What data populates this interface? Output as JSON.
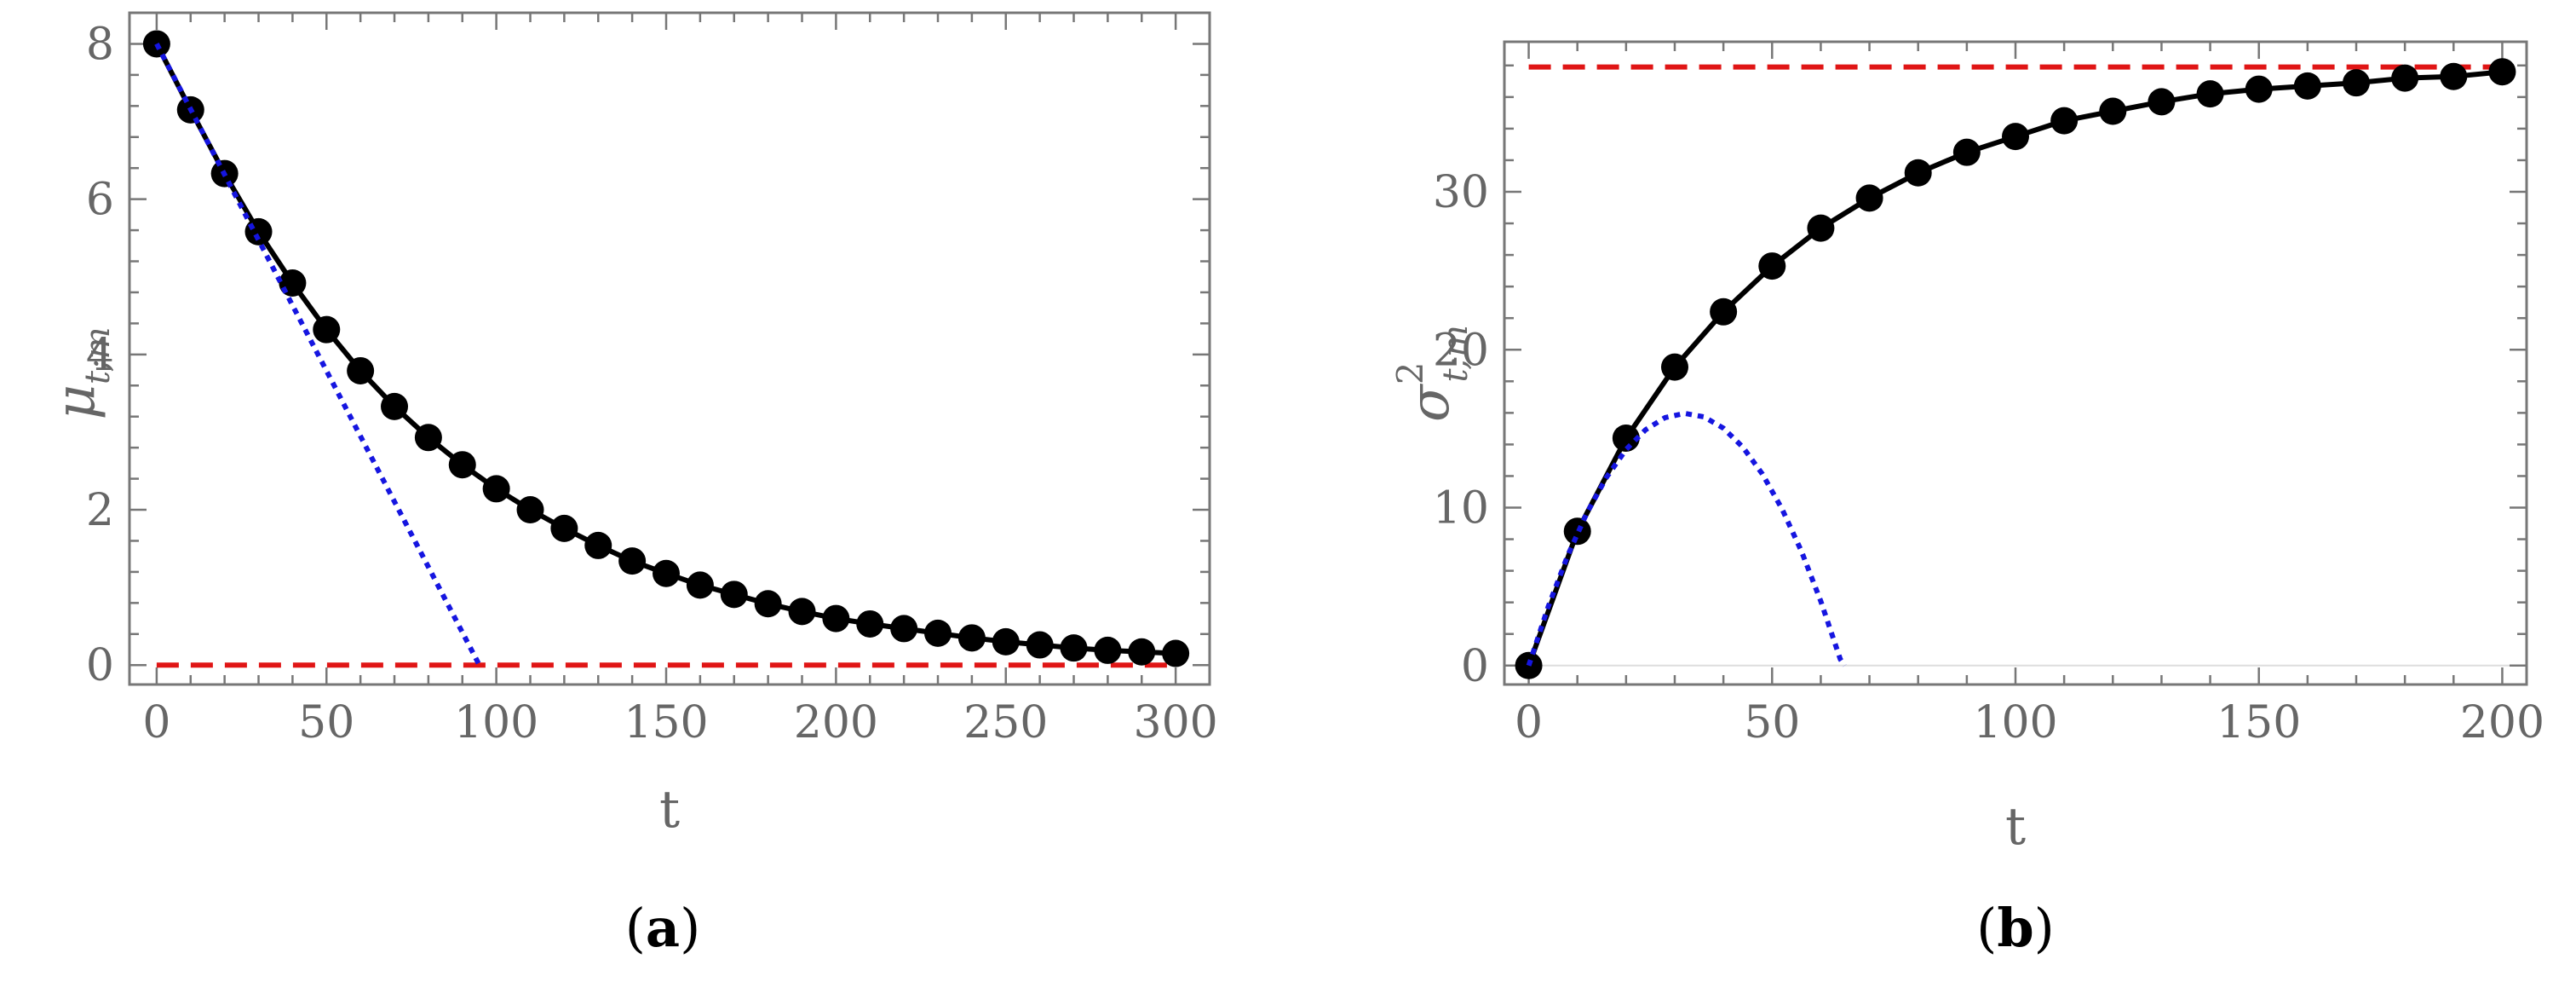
{
  "chart_data": [
    {
      "type": "line",
      "panel_label": "a",
      "xlabel": "t",
      "ylabel": "μ",
      "ylabel_sub": "t;m",
      "ylabel_sup": "",
      "xlim": [
        -8,
        310
      ],
      "ylim": [
        -0.25,
        8.4
      ],
      "xticks": [
        0,
        50,
        100,
        150,
        200,
        250,
        300
      ],
      "yticks": [
        0,
        2,
        4,
        6,
        8
      ],
      "x_minor_step": 10,
      "y_minor_step": 0.4,
      "grid": false,
      "legend": "none",
      "series": [
        {
          "style": "black-solid-with-points",
          "color": "#000000",
          "x": [
            0,
            10,
            20,
            30,
            40,
            50,
            60,
            70,
            80,
            90,
            100,
            110,
            120,
            130,
            140,
            150,
            160,
            170,
            180,
            190,
            200,
            210,
            220,
            230,
            240,
            250,
            260,
            270,
            280,
            290,
            300
          ],
          "y": [
            8.0,
            7.15,
            6.33,
            5.58,
            4.92,
            4.32,
            3.79,
            3.33,
            2.93,
            2.58,
            2.27,
            2.0,
            1.76,
            1.54,
            1.34,
            1.18,
            1.03,
            0.91,
            0.79,
            0.69,
            0.6,
            0.53,
            0.47,
            0.41,
            0.35,
            0.3,
            0.26,
            0.22,
            0.19,
            0.17,
            0.15
          ]
        },
        {
          "style": "blue-dotted",
          "color": "#1515e0",
          "x": [
            0,
            95
          ],
          "y": [
            8.0,
            0.0
          ]
        },
        {
          "style": "red-dashed",
          "color": "#e01515",
          "x": [
            0,
            300
          ],
          "y": [
            0.0,
            0.0
          ]
        }
      ]
    },
    {
      "type": "line",
      "panel_label": "b",
      "xlabel": "t",
      "ylabel": "σ",
      "ylabel_sub": "t;m",
      "ylabel_sup": "2",
      "xlim": [
        -5,
        205
      ],
      "ylim": [
        -1.2,
        39.5
      ],
      "xticks": [
        0,
        50,
        100,
        150,
        200
      ],
      "yticks": [
        0,
        10,
        20,
        30
      ],
      "x_minor_step": 10,
      "y_minor_step": 2,
      "grid": false,
      "legend": "none",
      "series": [
        {
          "style": "black-solid-with-points",
          "color": "#000000",
          "x": [
            0,
            10,
            20,
            30,
            40,
            50,
            60,
            70,
            80,
            90,
            100,
            110,
            120,
            130,
            140,
            150,
            160,
            170,
            180,
            190,
            200
          ],
          "y": [
            0.0,
            8.5,
            14.4,
            18.9,
            22.4,
            25.3,
            27.7,
            29.6,
            31.2,
            32.5,
            33.5,
            34.5,
            35.1,
            35.7,
            36.2,
            36.5,
            36.7,
            36.9,
            37.2,
            37.3,
            37.6
          ]
        },
        {
          "style": "blue-dotted",
          "color": "#1515e0",
          "x": [
            0,
            4,
            8,
            12,
            16,
            20,
            24,
            28,
            32,
            36,
            40,
            44,
            48,
            52,
            56,
            60,
            64,
            64.9
          ],
          "y": [
            0.0,
            3.72,
            6.96,
            9.69,
            11.93,
            13.68,
            14.93,
            15.7,
            15.97,
            15.75,
            15.03,
            13.83,
            12.13,
            9.94,
            7.26,
            4.08,
            0.41,
            0.0
          ]
        },
        {
          "style": "red-dashed",
          "color": "#e01515",
          "x": [
            0,
            200
          ],
          "y": [
            37.9,
            37.9
          ]
        }
      ]
    }
  ]
}
